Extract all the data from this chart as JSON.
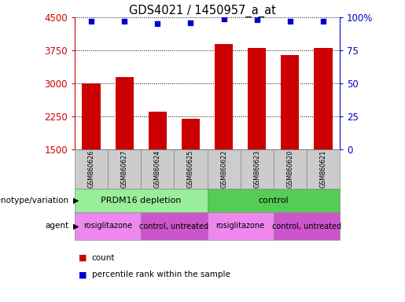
{
  "title": "GDS4021 / 1450957_a_at",
  "samples": [
    "GSM860626",
    "GSM860627",
    "GSM860624",
    "GSM860625",
    "GSM860622",
    "GSM860623",
    "GSM860620",
    "GSM860621"
  ],
  "counts": [
    3000,
    3150,
    2350,
    2200,
    3900,
    3800,
    3650,
    3800
  ],
  "percentile_ranks": [
    97,
    97,
    95,
    96,
    99,
    98,
    97,
    97
  ],
  "left_ylim": [
    1500,
    4500
  ],
  "right_ylim": [
    0,
    100
  ],
  "left_yticks": [
    1500,
    2250,
    3000,
    3750,
    4500
  ],
  "right_yticks": [
    0,
    25,
    50,
    75,
    100
  ],
  "bar_color": "#cc0000",
  "dot_color": "#0000cc",
  "bar_width": 0.55,
  "grid_color": "black",
  "genotype_row": {
    "label": "genotype/variation",
    "groups": [
      {
        "text": "PRDM16 depletion",
        "span": [
          0,
          3
        ],
        "color": "#99ee99"
      },
      {
        "text": "control",
        "span": [
          4,
          7
        ],
        "color": "#55cc55"
      }
    ]
  },
  "agent_row": {
    "label": "agent",
    "groups": [
      {
        "text": "rosiglitazone",
        "span": [
          0,
          1
        ],
        "color": "#ee88ee"
      },
      {
        "text": "control, untreated",
        "span": [
          2,
          3
        ],
        "color": "#cc55cc"
      },
      {
        "text": "rosiglitazone",
        "span": [
          4,
          5
        ],
        "color": "#ee88ee"
      },
      {
        "text": "control, untreated",
        "span": [
          6,
          7
        ],
        "color": "#cc55cc"
      }
    ]
  },
  "left_label_color": "#cc0000",
  "right_label_color": "#0000cc",
  "bg_color": "#ffffff",
  "sample_bg_color": "#cccccc",
  "sample_border_color": "#888888"
}
